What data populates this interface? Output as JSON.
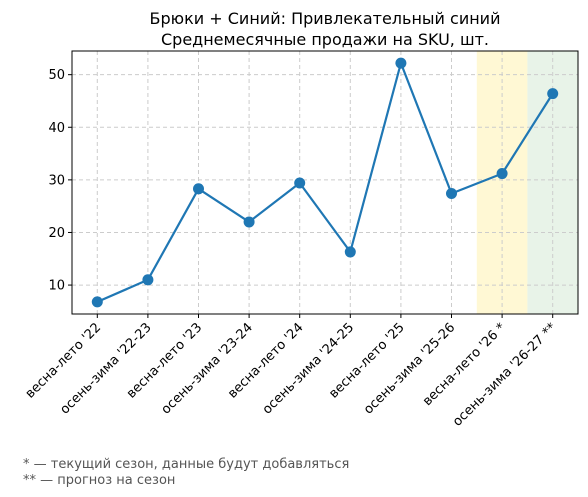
{
  "chart_data": {
    "type": "line",
    "title": "Брюки + Синий: Привлекательный синий",
    "subtitle": "Среднемесячные продажи на SKU, шт.",
    "xlabel": "",
    "ylabel": "",
    "categories": [
      "весна-лето '22",
      "осень-зима '22-23",
      "весна-лето '23",
      "осень-зима '23-24",
      "весна-лето '24",
      "осень-зима '24-25",
      "весна-лето '25",
      "осень-зима '25-26",
      "весна-лето '26 *",
      "осень-зима '26-27 **"
    ],
    "series": [
      {
        "values": [
          6.8,
          11.0,
          28.3,
          22.0,
          29.4,
          16.3,
          52.2,
          27.4,
          31.2,
          46.4
        ],
        "color": "#1f77b4"
      }
    ],
    "ylim": [
      4.5,
      54.5
    ],
    "yticks": [
      10,
      20,
      30,
      40,
      50
    ],
    "grid": true,
    "highlights": [
      {
        "category_index": 8,
        "meaning": "current season",
        "color": "#fff3b0"
      },
      {
        "category_index": 9,
        "meaning": "forecast",
        "color": "#d5ead5"
      }
    ]
  },
  "footnotes": [
    "* — текущий сезон, данные будут добавляться",
    "** — прогноз на сезон"
  ]
}
